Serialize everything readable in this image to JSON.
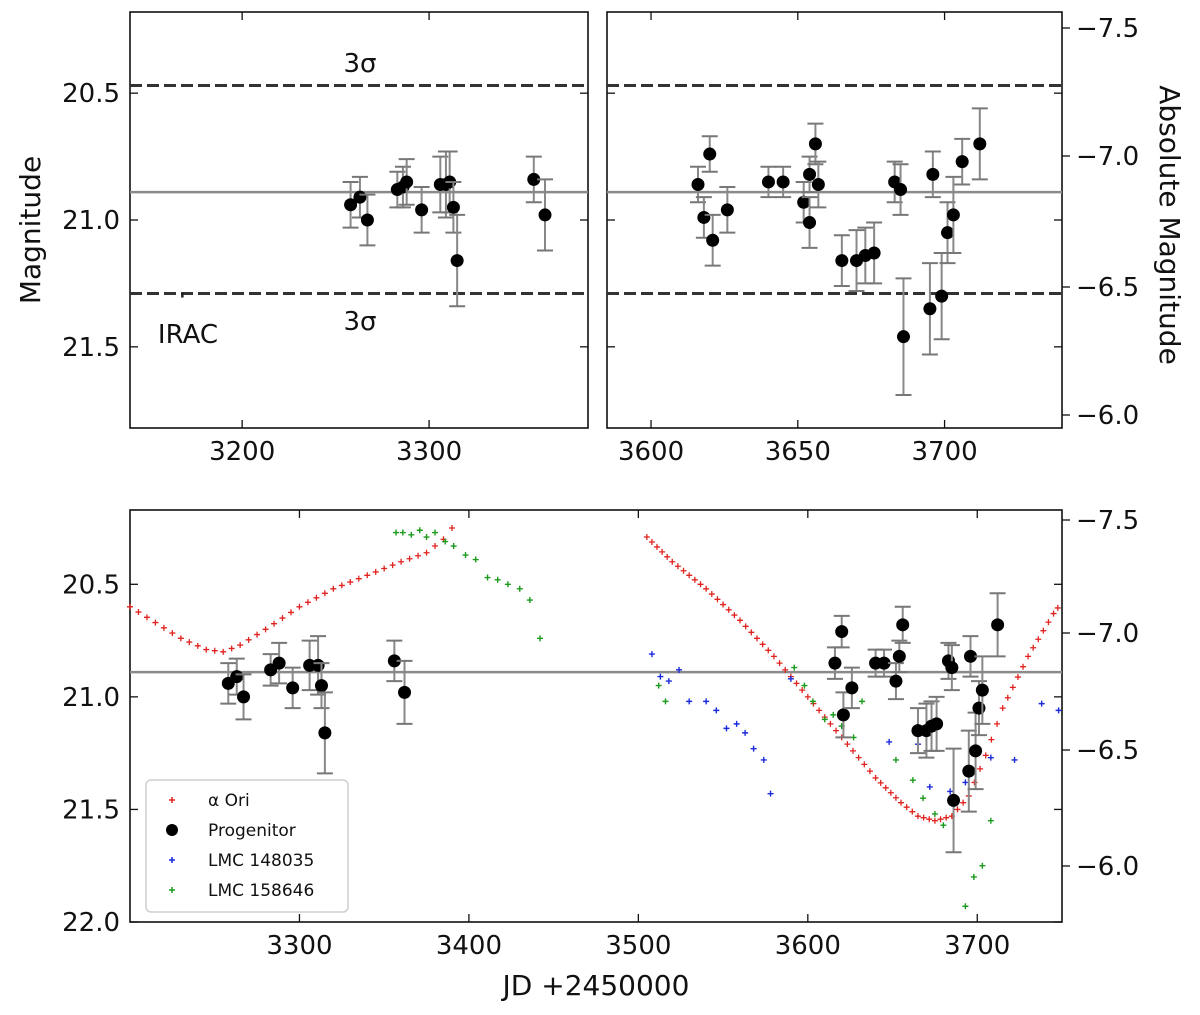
{
  "chart_data": [
    {
      "id": "top-left",
      "type": "scatter",
      "xlim": [
        3140,
        3385
      ],
      "ylim": [
        21.82,
        20.18
      ],
      "xticks": [
        3200,
        3300
      ],
      "yticks": [
        20.5,
        21.0,
        21.5
      ],
      "ylabel": "Magnitude",
      "xlabel": "",
      "hlines": [
        {
          "y": 20.47,
          "style": "dashed",
          "label": "3σ"
        },
        {
          "y": 20.89,
          "style": "solid"
        },
        {
          "y": 21.29,
          "style": "dashed",
          "label": "3σ"
        }
      ],
      "marker": {
        "x": 3168,
        "y": 21.26,
        "label": "IRAC"
      },
      "series": [
        {
          "name": "Progenitor",
          "color": "#000000",
          "x": [
            3258,
            3263,
            3267,
            3283,
            3286,
            3288,
            3296,
            3306,
            3309,
            3311,
            3313,
            3315,
            3356,
            3362
          ],
          "y": [
            20.94,
            20.91,
            21.0,
            20.88,
            20.87,
            20.85,
            20.96,
            20.86,
            20.86,
            20.85,
            20.95,
            21.16,
            20.84,
            20.98
          ],
          "yerr": [
            0.09,
            0.08,
            0.1,
            0.07,
            0.08,
            0.09,
            0.09,
            0.11,
            0.13,
            0.12,
            0.1,
            0.18,
            0.09,
            0.14
          ]
        }
      ]
    },
    {
      "id": "top-right",
      "type": "scatter",
      "xlim": [
        3585,
        3740
      ],
      "ylim": [
        21.82,
        20.18
      ],
      "xticks": [
        3600,
        3650,
        3700
      ],
      "yticks": [
        20.5,
        21.0,
        21.5
      ],
      "y2label": "Absolute Magnitude",
      "y2ticks": [
        "−7.5",
        "−7.0",
        "−6.5",
        "−6.0"
      ],
      "hlines": [
        {
          "y": 20.47,
          "style": "dashed"
        },
        {
          "y": 20.89,
          "style": "solid"
        },
        {
          "y": 21.29,
          "style": "dashed"
        }
      ],
      "series": [
        {
          "name": "Progenitor",
          "color": "#000000",
          "x": [
            3616,
            3618,
            3620,
            3621,
            3626,
            3640,
            3645,
            3652,
            3654,
            3654,
            3656,
            3657,
            3665,
            3670,
            3673,
            3676,
            3683,
            3685,
            3695,
            3696,
            3699,
            3701,
            3703,
            3706,
            3712
          ],
          "y": [
            20.86,
            20.99,
            20.74,
            21.08,
            20.96,
            20.85,
            20.85,
            20.93,
            20.82,
            21.01,
            20.7,
            20.86,
            21.16,
            21.16,
            21.14,
            21.13,
            20.85,
            20.88,
            21.35,
            20.82,
            21.3,
            21.05,
            20.98,
            20.77,
            20.7
          ],
          "yerr": [
            0.07,
            0.08,
            0.07,
            0.1,
            0.09,
            0.06,
            0.06,
            0.08,
            0.07,
            0.1,
            0.08,
            0.09,
            0.1,
            0.12,
            0.11,
            0.12,
            0.08,
            0.1,
            0.18,
            0.09,
            0.17,
            0.12,
            0.15,
            0.09,
            0.14
          ]
        }
      ],
      "extra_points": [
        {
          "x": 3686,
          "y": 21.46,
          "yerr": 0.23
        }
      ]
    },
    {
      "id": "bottom",
      "type": "scatter",
      "xlim": [
        3200,
        3750
      ],
      "ylim": [
        22.0,
        20.17
      ],
      "xticks": [
        3300,
        3400,
        3500,
        3600,
        3700
      ],
      "yticks": [
        20.5,
        21.0,
        21.5,
        22.0
      ],
      "xlabel": "JD +2450000",
      "y2ticks": [
        "−7.5",
        "−7.0",
        "−6.5",
        "−6.0"
      ],
      "hlines": [
        {
          "y": 20.89,
          "style": "solid"
        }
      ],
      "alpha_ori": {
        "x": [
          3200,
          3215,
          3230,
          3245,
          3255,
          3265,
          3280,
          3300,
          3320,
          3340,
          3360,
          3375,
          3385,
          3395
        ],
        "y": [
          20.6,
          20.67,
          20.74,
          20.79,
          20.8,
          20.77,
          20.7,
          20.6,
          20.52,
          20.46,
          20.4,
          20.36,
          20.3,
          20.2
        ],
        "x2": [
          3505,
          3520,
          3540,
          3560,
          3580,
          3600,
          3620,
          3640,
          3655,
          3665,
          3675,
          3685,
          3695,
          3705,
          3715,
          3730,
          3745,
          3750
        ],
        "y2": [
          20.29,
          20.4,
          20.52,
          20.66,
          20.82,
          21.0,
          21.18,
          21.36,
          21.47,
          21.53,
          21.55,
          21.53,
          21.44,
          21.26,
          21.05,
          20.82,
          20.63,
          20.58
        ]
      },
      "lmc_148035": {
        "x": [
          3508,
          3513,
          3518,
          3524,
          3530,
          3540,
          3546,
          3552,
          3558,
          3563,
          3568,
          3574,
          3578,
          3590,
          3648,
          3665,
          3672,
          3684,
          3693,
          3708,
          3722,
          3738,
          3748
        ],
        "y": [
          20.81,
          20.91,
          20.93,
          20.88,
          21.02,
          21.02,
          21.06,
          21.14,
          21.12,
          21.16,
          21.23,
          21.28,
          21.43,
          20.92,
          21.2,
          21.21,
          21.4,
          21.42,
          21.38,
          21.27,
          21.28,
          21.03,
          21.06
        ]
      },
      "lmc_158646": {
        "x": [
          3357,
          3361,
          3366,
          3371,
          3375,
          3380,
          3386,
          3391,
          3398,
          3404,
          3411,
          3417,
          3423,
          3430,
          3436,
          3442,
          3512,
          3516,
          3592,
          3598,
          3603,
          3610,
          3615,
          3620,
          3627,
          3632,
          3652,
          3662,
          3668,
          3675,
          3680,
          3686,
          3693,
          3698,
          3703,
          3708
        ],
        "y": [
          20.27,
          20.27,
          20.28,
          20.26,
          20.29,
          20.27,
          20.31,
          20.33,
          20.37,
          20.39,
          20.47,
          20.48,
          20.5,
          20.52,
          20.57,
          20.74,
          20.95,
          21.02,
          20.87,
          20.95,
          21.02,
          21.1,
          21.08,
          21.13,
          21.18,
          21.02,
          21.28,
          21.37,
          21.45,
          21.52,
          21.57,
          21.47,
          21.93,
          21.8,
          21.75,
          21.55
        ]
      },
      "progenitor": {
        "x": [
          3258,
          3263,
          3267,
          3283,
          3288,
          3296,
          3306,
          3311,
          3313,
          3315,
          3356,
          3362,
          3616,
          3620,
          3621,
          3626,
          3640,
          3645,
          3652,
          3654,
          3656,
          3665,
          3670,
          3673,
          3676,
          3683,
          3685,
          3695,
          3696,
          3699,
          3701,
          3703,
          3712
        ],
        "y": [
          20.94,
          20.91,
          21.0,
          20.88,
          20.85,
          20.96,
          20.86,
          20.86,
          20.95,
          21.16,
          20.84,
          20.98,
          20.85,
          20.71,
          21.08,
          20.96,
          20.85,
          20.85,
          20.93,
          20.82,
          20.68,
          21.15,
          21.15,
          21.13,
          21.12,
          20.84,
          20.87,
          21.33,
          20.82,
          21.24,
          21.05,
          20.97,
          20.68
        ],
        "yerr": [
          0.09,
          0.08,
          0.1,
          0.07,
          0.09,
          0.09,
          0.11,
          0.13,
          0.1,
          0.18,
          0.09,
          0.14,
          0.07,
          0.07,
          0.1,
          0.09,
          0.06,
          0.06,
          0.08,
          0.07,
          0.08,
          0.1,
          0.12,
          0.11,
          0.12,
          0.08,
          0.1,
          0.18,
          0.09,
          0.17,
          0.12,
          0.15,
          0.14
        ]
      },
      "progenitor_extra": [
        {
          "x": 3686,
          "y": 21.46,
          "yerr": 0.23
        }
      ],
      "legend": {
        "position": "lower-left",
        "entries": [
          {
            "label": "α Ori",
            "color": "#e0231f",
            "marker": "plus"
          },
          {
            "label": "Progenitor",
            "color": "#000000",
            "marker": "circle"
          },
          {
            "label": "LMC 148035",
            "color": "#1a2bdc",
            "marker": "plus"
          },
          {
            "label": "LMC 158646",
            "color": "#1c9a1c",
            "marker": "plus"
          }
        ]
      }
    }
  ]
}
